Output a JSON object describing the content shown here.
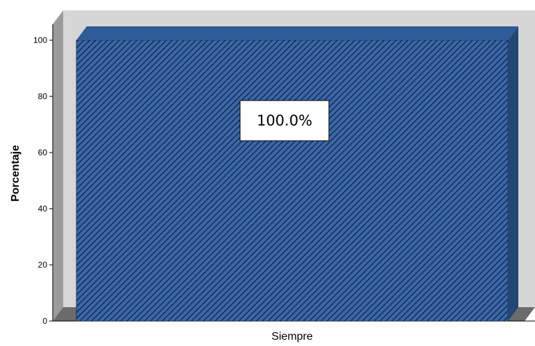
{
  "chart_data": {
    "type": "bar",
    "title": "",
    "xlabel": "",
    "ylabel": "Porcentaje",
    "categories": [
      "Siempre"
    ],
    "values": [
      100.0
    ],
    "data_labels": [
      "100.0%"
    ],
    "ylim": [
      0,
      100
    ],
    "yticks": [
      0,
      20,
      40,
      60,
      80,
      100
    ],
    "grid": false,
    "legend": "none",
    "style": "3d",
    "colors": {
      "bar_face": "#3a67a8",
      "bar_hatch": "#0b1e3a",
      "bar_top": "#2f5b96",
      "bar_side": "#224775",
      "wall_back": "#d6d6d6",
      "wall_side": "#9b9b9b",
      "floor": "#6b6b6b"
    }
  }
}
